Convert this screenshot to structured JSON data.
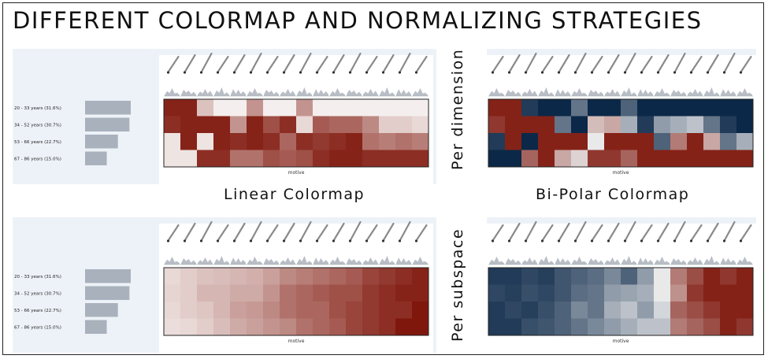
{
  "title": "DIFFERENT COLORMAP AND NORMALIZING STRATEGIES",
  "labels": {
    "linear": "Linear Colormap",
    "bipolar": "Bi-Polar Colormap",
    "per_dimension": "Per dimension",
    "per_subspace": "Per subspace"
  },
  "axis_label": "motive",
  "rows": [
    {
      "label": "20 - 33 years (31.6%)",
      "share": 31.6
    },
    {
      "label": "34 - 52 years (30.7%)",
      "share": 30.7
    },
    {
      "label": "53 - 66 years (22.7%)",
      "share": 22.7
    },
    {
      "label": "67 - 86 years (15.0%)",
      "share": 15.0
    }
  ],
  "colors": {
    "linear_low": "#f4efee",
    "linear_high": "#7a0c00",
    "bipolar_low": "#0b2848",
    "bipolar_mid": "#e9e9ea",
    "bipolar_high": "#7a0c00",
    "bar": "#a9b1bd",
    "glyph": "#8a8a8a"
  },
  "heatmaps": [
    {
      "id": "linear-per-dimension",
      "colormap": "linear",
      "values": [
        [
          0.9,
          0.9,
          0.2,
          0.0,
          0.0,
          0.4,
          0.0,
          0.0,
          0.4,
          0.0,
          0.0,
          0.0,
          0.0,
          0.0,
          0.0,
          0.0
        ],
        [
          0.85,
          0.9,
          0.9,
          0.9,
          0.4,
          0.9,
          0.7,
          0.85,
          0.1,
          0.65,
          0.6,
          0.6,
          0.45,
          0.15,
          0.15,
          0.1
        ],
        [
          0.05,
          0.9,
          0.05,
          0.9,
          0.85,
          0.9,
          0.85,
          0.6,
          0.85,
          0.8,
          0.85,
          0.9,
          0.55,
          0.5,
          0.55,
          0.5
        ],
        [
          0.05,
          0.05,
          0.85,
          0.85,
          0.55,
          0.55,
          0.7,
          0.65,
          0.7,
          0.85,
          0.9,
          0.9,
          0.85,
          0.85,
          0.85,
          0.85
        ]
      ]
    },
    {
      "id": "bipolar-per-dimension",
      "colormap": "bipolar",
      "values": [
        [
          0.95,
          0.95,
          0.05,
          0.0,
          0.0,
          0.2,
          0.0,
          0.0,
          0.15,
          0.0,
          0.0,
          0.0,
          0.0,
          0.0,
          0.0,
          0.0
        ],
        [
          0.9,
          0.95,
          0.95,
          0.95,
          0.2,
          0.0,
          0.6,
          0.65,
          0.35,
          0.05,
          0.3,
          0.35,
          0.4,
          0.2,
          0.05,
          0.0
        ],
        [
          0.05,
          0.95,
          0.0,
          0.95,
          0.95,
          0.95,
          0.5,
          0.95,
          0.95,
          0.95,
          0.15,
          0.75,
          0.95,
          0.65,
          0.2,
          0.35
        ],
        [
          0.0,
          0.0,
          0.8,
          0.95,
          0.65,
          0.55,
          0.9,
          0.9,
          0.8,
          0.95,
          0.95,
          0.95,
          0.95,
          0.95,
          0.95,
          0.95
        ]
      ]
    },
    {
      "id": "linear-per-subspace",
      "colormap": "linear",
      "values": [
        [
          0.1,
          0.15,
          0.2,
          0.22,
          0.25,
          0.28,
          0.35,
          0.45,
          0.5,
          0.55,
          0.6,
          0.65,
          0.75,
          0.8,
          0.85,
          0.9
        ],
        [
          0.12,
          0.15,
          0.25,
          0.25,
          0.3,
          0.3,
          0.4,
          0.55,
          0.6,
          0.65,
          0.7,
          0.7,
          0.8,
          0.85,
          0.9,
          0.9
        ],
        [
          0.1,
          0.15,
          0.18,
          0.25,
          0.35,
          0.38,
          0.45,
          0.55,
          0.6,
          0.6,
          0.7,
          0.75,
          0.8,
          0.85,
          0.85,
          0.95
        ],
        [
          0.08,
          0.1,
          0.15,
          0.22,
          0.3,
          0.35,
          0.4,
          0.45,
          0.55,
          0.6,
          0.65,
          0.75,
          0.8,
          0.85,
          0.95,
          0.95
        ]
      ]
    },
    {
      "id": "bipolar-per-subspace",
      "colormap": "bipolar",
      "values": [
        [
          0.05,
          0.05,
          0.08,
          0.06,
          0.12,
          0.15,
          0.18,
          0.25,
          0.15,
          0.3,
          0.5,
          0.75,
          0.85,
          0.95,
          0.9,
          0.95
        ],
        [
          0.08,
          0.06,
          0.1,
          0.08,
          0.12,
          0.18,
          0.2,
          0.3,
          0.32,
          0.35,
          0.5,
          0.7,
          0.9,
          0.95,
          0.95,
          0.95
        ],
        [
          0.05,
          0.08,
          0.06,
          0.1,
          0.15,
          0.25,
          0.2,
          0.35,
          0.4,
          0.3,
          0.45,
          0.8,
          0.85,
          0.9,
          0.95,
          0.95
        ],
        [
          0.05,
          0.05,
          0.1,
          0.12,
          0.15,
          0.2,
          0.25,
          0.3,
          0.35,
          0.4,
          0.4,
          0.75,
          0.8,
          0.85,
          0.95,
          0.9
        ]
      ]
    }
  ]
}
